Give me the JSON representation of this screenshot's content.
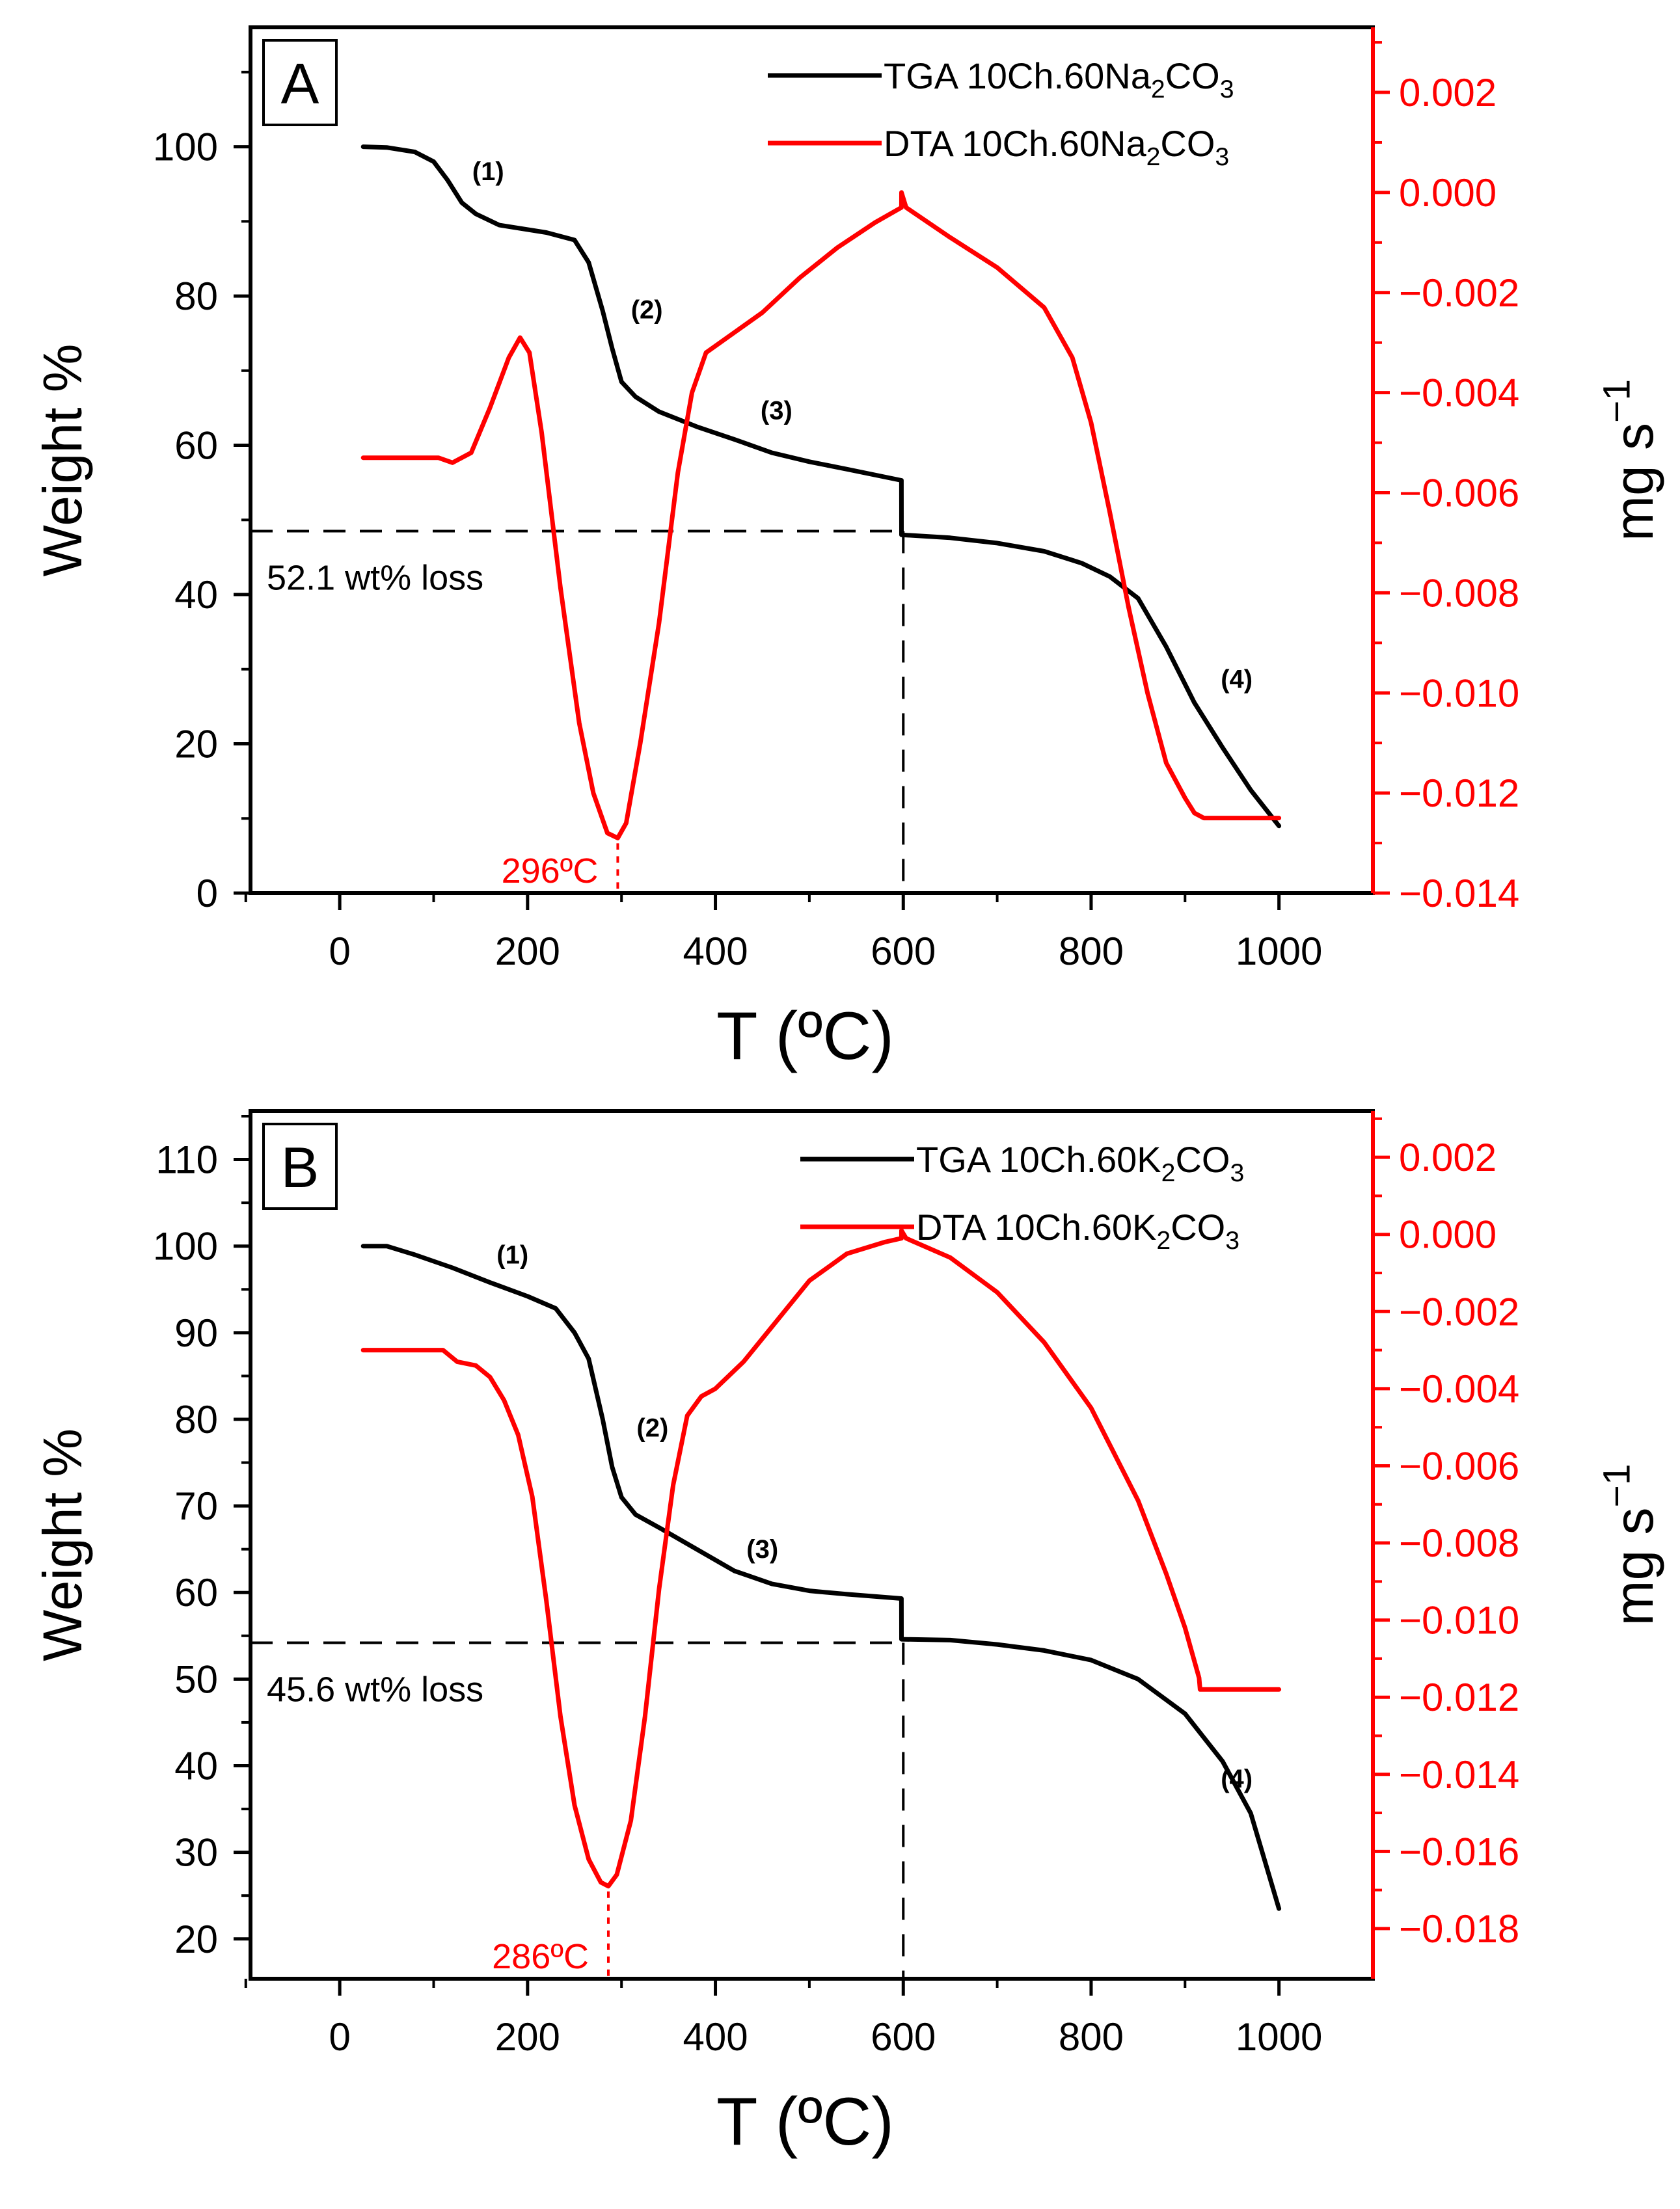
{
  "colors": {
    "tga": "#000000",
    "dta": "#ff0000",
    "axis_left": "#000000",
    "axis_right": "#ff0000",
    "guide": "#000000"
  },
  "chart_data": [
    {
      "type": "line",
      "panel_label": "A",
      "xlabel": "T (ºC)",
      "ylabel": "Weight %",
      "y2label": "mg s⁻¹",
      "xlim": [
        -95,
        1100
      ],
      "ylim": [
        0,
        116
      ],
      "y2lim": [
        -0.014,
        0.0033
      ],
      "xticks": [
        0,
        200,
        400,
        600,
        800,
        1000
      ],
      "yticks": [
        0,
        20,
        40,
        60,
        80,
        100
      ],
      "y2ticks": [
        -0.014,
        -0.012,
        -0.01,
        -0.008,
        -0.006,
        -0.004,
        -0.002,
        0,
        0.002
      ],
      "y2tick_labels": [
        "−0.014",
        "−0.012",
        "−0.010",
        "−0.008",
        "−0.006",
        "−0.004",
        "−0.002",
        "0.000",
        "0.002"
      ],
      "legend": [
        {
          "label": "TGA 10Ch.60Na₂CO₃",
          "series": "tga"
        },
        {
          "label": "DTA 10Ch.60Na₂CO₃",
          "series": "dta"
        }
      ],
      "series": [
        {
          "name": "TGA 10Ch.60Na₂CO₃",
          "axis": "left",
          "x": [
            25,
            50,
            80,
            100,
            115,
            130,
            145,
            170,
            220,
            250,
            265,
            280,
            290,
            300,
            315,
            340,
            380,
            420,
            460,
            500,
            540,
            598,
            598.1,
            650,
            700,
            750,
            790,
            820,
            850,
            880,
            910,
            940,
            970,
            1000
          ],
          "y": [
            100,
            99.9,
            99.3,
            98,
            95.5,
            92.5,
            91,
            89.5,
            88.5,
            87.5,
            84.5,
            78,
            73,
            68.5,
            66.5,
            64.5,
            62.5,
            60.8,
            59,
            57.8,
            56.8,
            55.3,
            48,
            47.6,
            46.9,
            45.8,
            44.2,
            42.4,
            39.5,
            33,
            25.5,
            19.5,
            13.8,
            9
          ]
        },
        {
          "name": "DTA 10Ch.60Na₂CO₃",
          "axis": "right",
          "x": [
            25,
            105,
            120,
            140,
            160,
            180,
            192,
            202,
            215,
            235,
            255,
            270,
            285,
            296,
            305,
            320,
            340,
            360,
            375,
            390,
            420,
            450,
            490,
            530,
            570,
            598,
            598.1,
            603,
            650,
            700,
            750,
            780,
            800,
            820,
            840,
            860,
            880,
            900,
            910,
            920,
            1000
          ],
          "y": [
            -0.0053,
            -0.0053,
            -0.0054,
            -0.0052,
            -0.0043,
            -0.0033,
            -0.0029,
            -0.0032,
            -0.0048,
            -0.0079,
            -0.0106,
            -0.012,
            -0.0128,
            -0.0129,
            -0.0126,
            -0.011,
            -0.0086,
            -0.0056,
            -0.004,
            -0.0032,
            -0.0028,
            -0.0024,
            -0.0017,
            -0.0011,
            -0.0006,
            -0.0003,
            0,
            -0.0003,
            -0.0009,
            -0.0015,
            -0.0023,
            -0.0033,
            -0.0046,
            -0.0064,
            -0.0083,
            -0.01,
            -0.0114,
            -0.0121,
            -0.0124,
            -0.0125,
            -0.0125
          ]
        }
      ],
      "guide": {
        "x": 600,
        "y": 48.5,
        "label": "52.1 wt% loss"
      },
      "peak": {
        "x": 296,
        "label": "296ºC"
      },
      "stage_labels": [
        {
          "text": "(1)",
          "x": 158,
          "y": 95.5
        },
        {
          "text": "(2)",
          "x": 327,
          "y": 77
        },
        {
          "text": "(3)",
          "x": 465,
          "y": 63.5
        },
        {
          "text": "(4)",
          "x": 955,
          "y": 27.5
        }
      ]
    },
    {
      "type": "line",
      "panel_label": "B",
      "xlabel": "T (ºC)",
      "ylabel": "Weight %",
      "y2label": "mg s⁻¹",
      "xlim": [
        -95,
        1100
      ],
      "ylim": [
        15.4,
        115.6
      ],
      "y2lim": [
        -0.0193,
        0.0032
      ],
      "xticks": [
        0,
        200,
        400,
        600,
        800,
        1000
      ],
      "yticks": [
        20,
        30,
        40,
        50,
        60,
        70,
        80,
        90,
        100,
        110
      ],
      "y2ticks": [
        -0.018,
        -0.016,
        -0.014,
        -0.012,
        -0.01,
        -0.008,
        -0.006,
        -0.004,
        -0.002,
        0,
        0.002
      ],
      "y2tick_labels": [
        "−0.018",
        "−0.016",
        "−0.014",
        "−0.012",
        "−0.010",
        "−0.008",
        "−0.006",
        "−0.004",
        "−0.002",
        "0.000",
        "0.002"
      ],
      "legend": [
        {
          "label": "TGA 10Ch.60K₂CO₃",
          "series": "tga"
        },
        {
          "label": "DTA 10Ch.60K₂CO₃",
          "series": "dta"
        }
      ],
      "series": [
        {
          "name": "TGA 10Ch.60K₂CO₃",
          "axis": "left",
          "x": [
            25,
            50,
            80,
            120,
            160,
            200,
            230,
            250,
            265,
            280,
            290,
            300,
            315,
            340,
            380,
            420,
            460,
            500,
            540,
            598,
            598.1,
            650,
            700,
            750,
            800,
            850,
            900,
            940,
            970,
            1000
          ],
          "y": [
            100,
            100,
            99,
            97.5,
            95.8,
            94.2,
            92.8,
            90,
            87,
            80,
            74.5,
            71,
            69,
            67.5,
            65,
            62.5,
            61,
            60.2,
            59.8,
            59.3,
            54.6,
            54.5,
            54,
            53.3,
            52.2,
            50,
            46,
            40.5,
            34.5,
            23.5
          ]
        },
        {
          "name": "DTA 10Ch.60K₂CO₃",
          "axis": "right",
          "x": [
            25,
            110,
            125,
            145,
            160,
            175,
            190,
            205,
            220,
            235,
            250,
            265,
            278,
            286,
            295,
            310,
            325,
            340,
            355,
            370,
            385,
            400,
            430,
            460,
            500,
            540,
            580,
            598,
            598.1,
            603,
            650,
            700,
            750,
            800,
            850,
            880,
            900,
            915,
            916,
            1000
          ],
          "y": [
            -0.003,
            -0.003,
            -0.0033,
            -0.0034,
            -0.0037,
            -0.0043,
            -0.0052,
            -0.0068,
            -0.0095,
            -0.0125,
            -0.0148,
            -0.0162,
            -0.0168,
            -0.0169,
            -0.0166,
            -0.0152,
            -0.0125,
            -0.0092,
            -0.0065,
            -0.0047,
            -0.0042,
            -0.004,
            -0.0033,
            -0.0024,
            -0.0012,
            -0.0005,
            -0.0002,
            -0.0001,
            0.0001,
            -0.0001,
            -0.0006,
            -0.0015,
            -0.0028,
            -0.0045,
            -0.0069,
            -0.0088,
            -0.0102,
            -0.0115,
            -0.0118,
            -0.0118
          ]
        }
      ],
      "guide": {
        "x": 600,
        "y": 54.2,
        "label": "45.6 wt% loss"
      },
      "peak": {
        "x": 286,
        "label": "286ºC"
      },
      "stage_labels": [
        {
          "text": "(1)",
          "x": 184,
          "y": 98
        },
        {
          "text": "(2)",
          "x": 333,
          "y": 78
        },
        {
          "text": "(3)",
          "x": 450,
          "y": 64
        },
        {
          "text": "(4)",
          "x": 955,
          "y": 37.5
        }
      ]
    }
  ]
}
